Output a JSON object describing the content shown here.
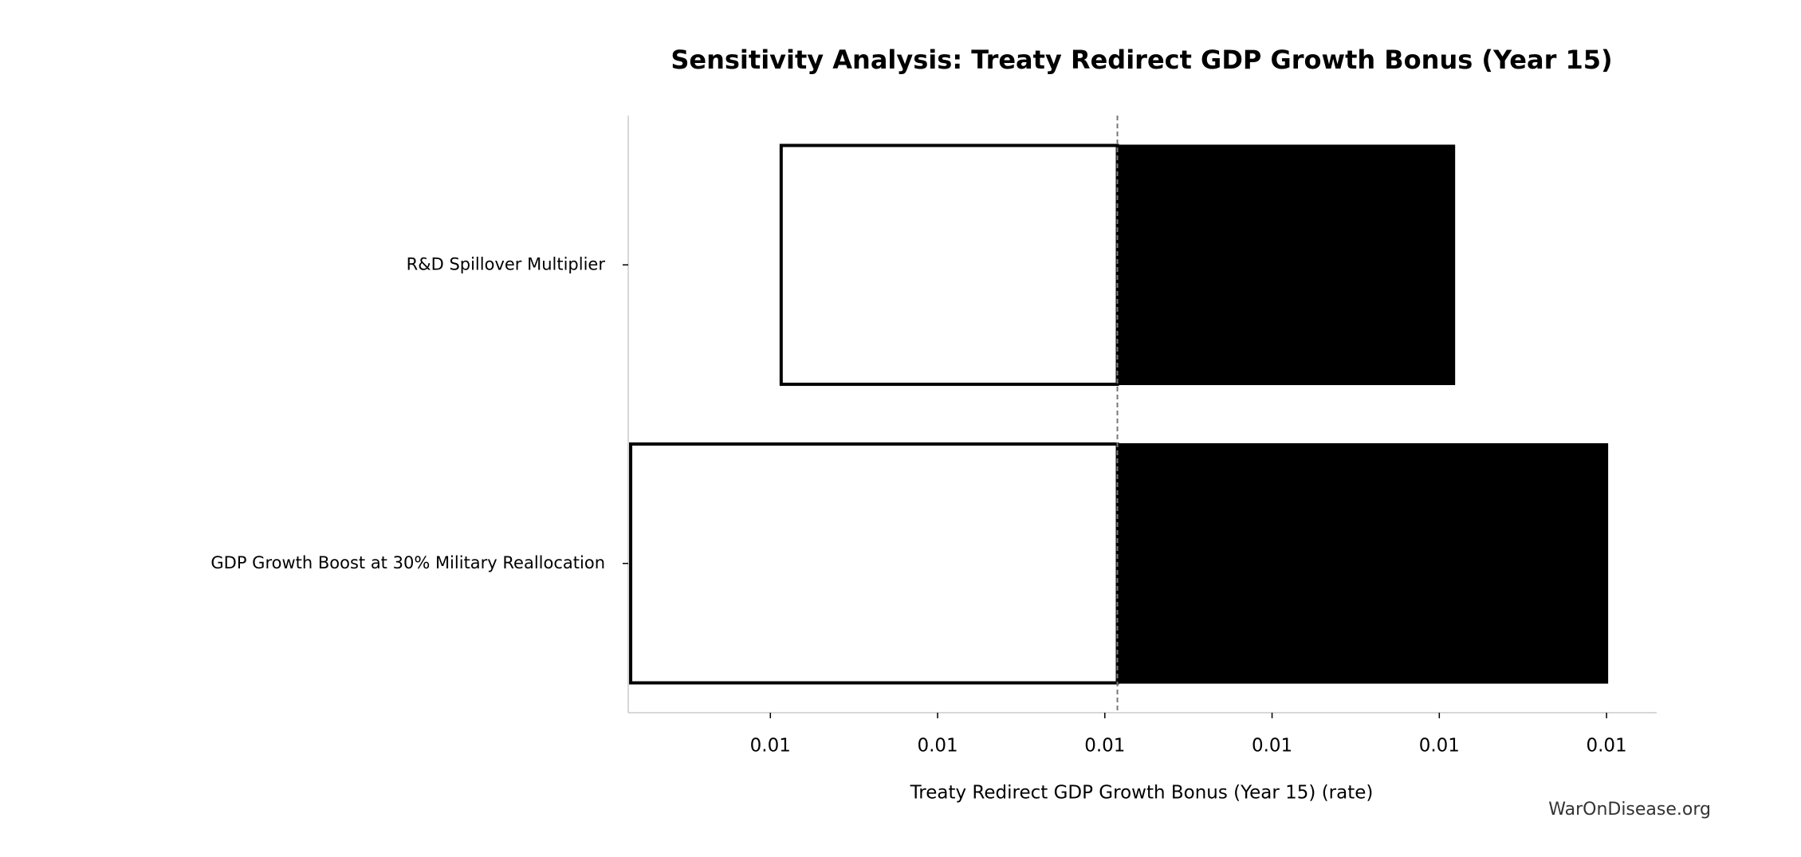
{
  "chart_data": {
    "type": "tornado",
    "title": "Sensitivity Analysis: Treaty Redirect GDP Growth Bonus (Year 15)",
    "x_label": "Treaty Redirect GDP Growth Bonus (Year 15) (rate)",
    "watermark": "WarOnDisease.org",
    "categories": [
      "R&D Spillover Multiplier",
      "GDP Growth Boost at 30% Military Reallocation"
    ],
    "baseline": 0.010015,
    "low_values": [
      0.009611,
      0.009431
    ],
    "high_values": [
      0.010418,
      0.010601
    ],
    "low_color": "#ffffff",
    "high_color": "#000000",
    "xlim": [
      0.00943,
      0.01066
    ],
    "xticks": [
      {
        "value": 0.0096,
        "label": "0.01"
      },
      {
        "value": 0.0098,
        "label": "0.01"
      },
      {
        "value": 0.01,
        "label": "0.01"
      },
      {
        "value": 0.0102,
        "label": "0.01"
      },
      {
        "value": 0.0104,
        "label": "0.01"
      },
      {
        "value": 0.0106,
        "label": "0.01"
      }
    ]
  }
}
